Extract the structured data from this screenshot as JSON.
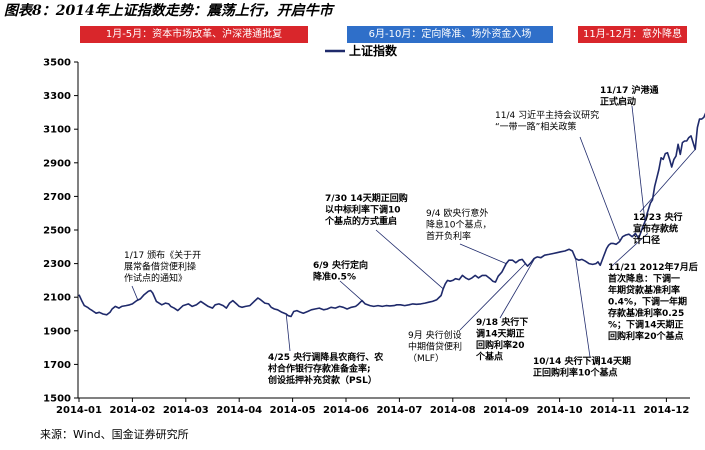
{
  "figure_title": "图表8：2014年上证指数走势：震荡上行，开启牛市",
  "source_note": "来源：Wind、国金证券研究所",
  "phases": [
    {
      "label": "1月-5月：资本市场改革、沪深港通批复",
      "color": "#d9262b"
    },
    {
      "label": "6月-10月：定向降准、场外资金入场",
      "color": "#2f6fc9"
    },
    {
      "label": "11月-12月：意外降息",
      "color": "#d9262b"
    }
  ],
  "chart_data": {
    "type": "line",
    "title": "",
    "xlabel": "",
    "ylabel": "",
    "x_axis": "month index, 0 = 2014-01 label, 11 = 2014-12 label",
    "x_ticks": [
      "2014-01",
      "2014-02",
      "2014-03",
      "2014-04",
      "2014-05",
      "2014-06",
      "2014-07",
      "2014-08",
      "2014-09",
      "2014-10",
      "2014-11",
      "2014-12"
    ],
    "ylim": [
      1500,
      3500
    ],
    "y_ticks": [
      1500,
      1700,
      1900,
      2100,
      2300,
      2500,
      2700,
      2900,
      3100,
      3300,
      3500
    ],
    "grid": false,
    "legend_position": "top-left",
    "series": [
      {
        "name": "上证指数",
        "color": "#1f2a6b",
        "points": [
          [
            0.0,
            2115
          ],
          [
            0.05,
            2080
          ],
          [
            0.1,
            2050
          ],
          [
            0.16,
            2040
          ],
          [
            0.2,
            2030
          ],
          [
            0.25,
            2020
          ],
          [
            0.32,
            2005
          ],
          [
            0.38,
            2010
          ],
          [
            0.45,
            2000
          ],
          [
            0.52,
            1995
          ],
          [
            0.58,
            2010
          ],
          [
            0.62,
            2030
          ],
          [
            0.68,
            2045
          ],
          [
            0.75,
            2035
          ],
          [
            0.8,
            2045
          ],
          [
            0.88,
            2050
          ],
          [
            0.95,
            2055
          ],
          [
            1.0,
            2060
          ],
          [
            1.08,
            2080
          ],
          [
            1.15,
            2090
          ],
          [
            1.22,
            2115
          ],
          [
            1.3,
            2135
          ],
          [
            1.34,
            2140
          ],
          [
            1.38,
            2125
          ],
          [
            1.45,
            2075
          ],
          [
            1.55,
            2055
          ],
          [
            1.62,
            2065
          ],
          [
            1.68,
            2060
          ],
          [
            1.72,
            2045
          ],
          [
            1.78,
            2035
          ],
          [
            1.85,
            2020
          ],
          [
            1.95,
            2050
          ],
          [
            2.05,
            2060
          ],
          [
            2.12,
            2045
          ],
          [
            2.2,
            2055
          ],
          [
            2.28,
            2075
          ],
          [
            2.35,
            2060
          ],
          [
            2.42,
            2045
          ],
          [
            2.5,
            2035
          ],
          [
            2.55,
            2055
          ],
          [
            2.62,
            2060
          ],
          [
            2.7,
            2050
          ],
          [
            2.76,
            2035
          ],
          [
            2.82,
            2065
          ],
          [
            2.88,
            2080
          ],
          [
            2.95,
            2060
          ],
          [
            3.0,
            2045
          ],
          [
            3.05,
            2040
          ],
          [
            3.12,
            2045
          ],
          [
            3.2,
            2050
          ],
          [
            3.28,
            2075
          ],
          [
            3.35,
            2095
          ],
          [
            3.4,
            2085
          ],
          [
            3.48,
            2065
          ],
          [
            3.55,
            2060
          ],
          [
            3.6,
            2040
          ],
          [
            3.66,
            2030
          ],
          [
            3.72,
            2025
          ],
          [
            3.8,
            2010
          ],
          [
            3.88,
            2000
          ],
          [
            3.92,
            1990
          ],
          [
            3.97,
            1985
          ],
          [
            4.02,
            2015
          ],
          [
            4.08,
            2020
          ],
          [
            4.15,
            2010
          ],
          [
            4.2,
            2005
          ],
          [
            4.28,
            2015
          ],
          [
            4.35,
            2025
          ],
          [
            4.42,
            2030
          ],
          [
            4.5,
            2035
          ],
          [
            4.58,
            2025
          ],
          [
            4.65,
            2030
          ],
          [
            4.72,
            2040
          ],
          [
            4.8,
            2035
          ],
          [
            4.88,
            2045
          ],
          [
            4.95,
            2040
          ],
          [
            5.02,
            2030
          ],
          [
            5.1,
            2040
          ],
          [
            5.18,
            2045
          ],
          [
            5.22,
            2055
          ],
          [
            5.3,
            2080
          ],
          [
            5.36,
            2060
          ],
          [
            5.45,
            2050
          ],
          [
            5.52,
            2045
          ],
          [
            5.6,
            2050
          ],
          [
            5.68,
            2045
          ],
          [
            5.75,
            2050
          ],
          [
            5.82,
            2048
          ],
          [
            5.9,
            2050
          ],
          [
            5.95,
            2055
          ],
          [
            6.02,
            2055
          ],
          [
            6.1,
            2050
          ],
          [
            6.18,
            2055
          ],
          [
            6.25,
            2060
          ],
          [
            6.32,
            2058
          ],
          [
            6.4,
            2060
          ],
          [
            6.48,
            2065
          ],
          [
            6.55,
            2070
          ],
          [
            6.62,
            2075
          ],
          [
            6.7,
            2085
          ],
          [
            6.78,
            2110
          ],
          [
            6.82,
            2150
          ],
          [
            6.86,
            2180
          ],
          [
            6.9,
            2200
          ],
          [
            6.95,
            2195
          ],
          [
            7.0,
            2200
          ],
          [
            7.05,
            2210
          ],
          [
            7.12,
            2205
          ],
          [
            7.18,
            2230
          ],
          [
            7.24,
            2215
          ],
          [
            7.3,
            2205
          ],
          [
            7.36,
            2215
          ],
          [
            7.42,
            2230
          ],
          [
            7.48,
            2215
          ],
          [
            7.55,
            2230
          ],
          [
            7.62,
            2230
          ],
          [
            7.7,
            2210
          ],
          [
            7.75,
            2195
          ],
          [
            7.8,
            2190
          ],
          [
            7.85,
            2225
          ],
          [
            7.92,
            2250
          ],
          [
            8.0,
            2300
          ],
          [
            8.05,
            2320
          ],
          [
            8.12,
            2320
          ],
          [
            8.18,
            2305
          ],
          [
            8.24,
            2320
          ],
          [
            8.3,
            2325
          ],
          [
            8.36,
            2300
          ],
          [
            8.4,
            2285
          ],
          [
            8.46,
            2305
          ],
          [
            8.52,
            2330
          ],
          [
            8.58,
            2340
          ],
          [
            8.65,
            2335
          ],
          [
            8.72,
            2350
          ],
          [
            8.8,
            2355
          ],
          [
            8.88,
            2360
          ],
          [
            8.95,
            2365
          ],
          [
            9.02,
            2370
          ],
          [
            9.1,
            2375
          ],
          [
            9.18,
            2385
          ],
          [
            9.24,
            2375
          ],
          [
            9.3,
            2330
          ],
          [
            9.36,
            2320
          ],
          [
            9.42,
            2325
          ],
          [
            9.48,
            2315
          ],
          [
            9.55,
            2300
          ],
          [
            9.62,
            2295
          ],
          [
            9.68,
            2300
          ],
          [
            9.72,
            2310
          ],
          [
            9.76,
            2290
          ],
          [
            9.82,
            2340
          ],
          [
            9.88,
            2390
          ],
          [
            9.92,
            2410
          ],
          [
            9.96,
            2420
          ],
          [
            10.0,
            2420
          ],
          [
            10.06,
            2415
          ],
          [
            10.12,
            2430
          ],
          [
            10.18,
            2460
          ],
          [
            10.24,
            2470
          ],
          [
            10.3,
            2475
          ],
          [
            10.36,
            2460
          ],
          [
            10.42,
            2480
          ],
          [
            10.48,
            2450
          ],
          [
            10.52,
            2485
          ],
          [
            10.56,
            2520
          ],
          [
            10.6,
            2550
          ],
          [
            10.64,
            2600
          ],
          [
            10.7,
            2660
          ],
          [
            10.74,
            2680
          ],
          [
            10.78,
            2760
          ],
          [
            10.82,
            2810
          ],
          [
            10.86,
            2860
          ],
          [
            10.9,
            2930
          ],
          [
            10.94,
            2920
          ],
          [
            10.98,
            2955
          ],
          [
            11.02,
            2960
          ],
          [
            11.06,
            2920
          ],
          [
            11.1,
            2875
          ],
          [
            11.14,
            2920
          ],
          [
            11.18,
            2940
          ],
          [
            11.22,
            3010
          ],
          [
            11.26,
            2950
          ],
          [
            11.3,
            3020
          ],
          [
            11.34,
            3030
          ],
          [
            11.38,
            3030
          ],
          [
            11.42,
            3050
          ],
          [
            11.46,
            3060
          ],
          [
            11.5,
            3020
          ],
          [
            11.54,
            2980
          ],
          [
            11.58,
            3110
          ],
          [
            11.62,
            3160
          ],
          [
            11.66,
            3160
          ],
          [
            11.7,
            3170
          ],
          [
            11.74,
            3200
          ],
          [
            11.76,
            3235
          ]
        ]
      }
    ],
    "annotations": [
      {
        "lines": [
          "1/17 颁布《关于开",
          "展常备借贷便利操",
          "作试点的通知》"
        ],
        "bold": false,
        "target": [
          1.1,
          2085
        ]
      },
      {
        "lines": [
          "4/25 央行调降县农商行、农",
          "村合作银行存款准备金率;",
          "创设抵押补充贷款（PSL）"
        ],
        "bold": true,
        "target": [
          3.88,
          2000
        ]
      },
      {
        "lines": [
          "6/9 央行定向",
          "降准0.5%"
        ],
        "bold": true,
        "target": [
          5.3,
          2080
        ]
      },
      {
        "lines": [
          "7/30 14天期正回购",
          "以中标利率下调10",
          "个基点的方式重启"
        ],
        "bold": true,
        "target": [
          6.82,
          2150
        ]
      },
      {
        "lines": [
          "9/4 欧央行意外",
          "降息10个基点，",
          "首开负利率"
        ],
        "bold": false,
        "target": [
          8.0,
          2300
        ]
      },
      {
        "lines": [
          "9月 央行创设",
          "中期借贷便利",
          "（MLF）"
        ],
        "bold": false,
        "target": [
          8.36,
          2300
        ]
      },
      {
        "lines": [
          "9/18 央行下",
          "调14天期正",
          "回购利率20",
          "个基点"
        ],
        "bold": true,
        "target": [
          8.55,
          2340
        ]
      },
      {
        "lines": [
          "10/14 央行下调14天期",
          "正回购利率10个基点"
        ],
        "bold": true,
        "target": [
          9.3,
          2330
        ]
      },
      {
        "lines": [
          "11/4 习近平主持会议研究",
          "“一带一路”相关政策"
        ],
        "bold": false,
        "target": [
          10.12,
          2440
        ]
      },
      {
        "lines": [
          "11/17 沪港通",
          "正式启动"
        ],
        "bold": true,
        "target": [
          10.6,
          2550
        ]
      },
      {
        "lines": [
          "11/21 2012年7月后",
          "首次降息：下调一",
          "年期贷款基准利率",
          "0.4%，下调一年期",
          "存款基准利率0.25",
          "%；下调14天期正",
          "回购利率20个基点"
        ],
        "bold": true,
        "target": [
          10.65,
          2480
        ]
      },
      {
        "lines": [
          "12/23 央行",
          "宣布存款统",
          "计口径"
        ],
        "bold": true,
        "target": [
          11.54,
          2980
        ]
      }
    ]
  }
}
